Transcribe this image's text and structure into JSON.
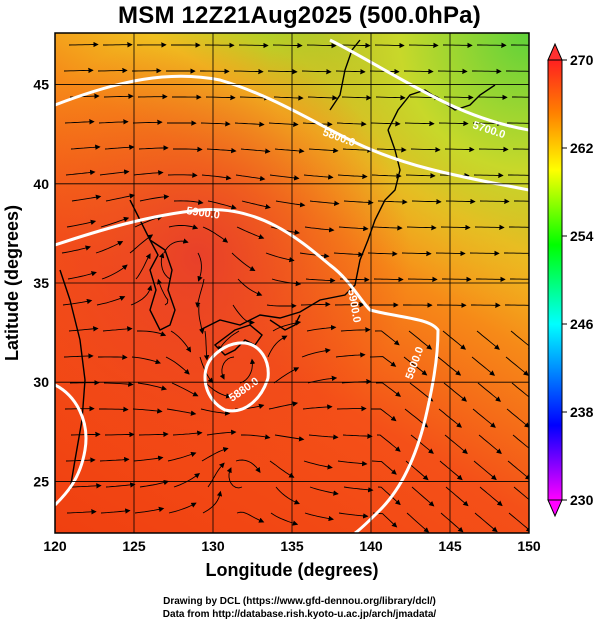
{
  "title": "MSM 12Z21Aug2025 (500.0hPa)",
  "axes": {
    "xlabel": "Longitude (degrees)",
    "ylabel": "Latitude  (degrees)",
    "x_ticks": [
      "120",
      "125",
      "130",
      "135",
      "140",
      "145",
      "150"
    ],
    "y_ticks": [
      "25",
      "30",
      "35",
      "40",
      "45"
    ],
    "xlim": [
      120,
      150
    ],
    "ylim": [
      22.4,
      47.6
    ]
  },
  "colorbar": {
    "tick_labels": [
      "270",
      "262",
      "254",
      "246",
      "238",
      "230"
    ],
    "range": [
      230,
      270
    ],
    "colors": [
      "#ff00ff",
      "#0000ff",
      "#00ffff",
      "#00ff00",
      "#ffff00",
      "#ff8000",
      "#ff0000"
    ]
  },
  "contour_labels": [
    "5700.0",
    "5800.0",
    "5900.0",
    "5900.0",
    "5880.0",
    "5900.0"
  ],
  "credits": [
    "Drawing by DCL (https://www.gfd-dennou.org/library/dcl/)",
    "Data from http://database.rish.kyoto-u.ac.jp/arch/jmadata/"
  ]
}
